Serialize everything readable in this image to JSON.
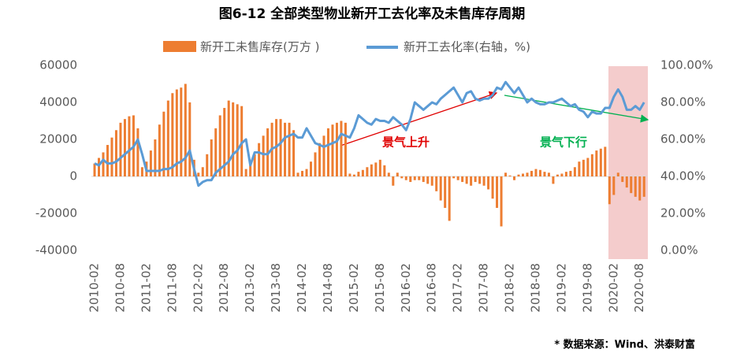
{
  "chart_data": {
    "type": "bar_line",
    "title": "图6-12 全部类型物业新开工去化率及未售库存周期",
    "categories": [
      "2010-02",
      null,
      null,
      null,
      null,
      null,
      "2010-08",
      null,
      null,
      null,
      null,
      null,
      "2011-02",
      null,
      null,
      null,
      null,
      null,
      "2011-08",
      null,
      null,
      null,
      null,
      null,
      "2012-02",
      null,
      null,
      null,
      null,
      null,
      "2012-08",
      null,
      null,
      null,
      null,
      null,
      "2013-02",
      null,
      null,
      null,
      null,
      null,
      "2013-08",
      null,
      null,
      null,
      null,
      null,
      "2014-02",
      null,
      null,
      null,
      null,
      null,
      "2014-08",
      null,
      null,
      null,
      null,
      null,
      "2015-02",
      null,
      null,
      null,
      null,
      null,
      "2015-08",
      null,
      null,
      null,
      null,
      null,
      "2016-02",
      null,
      null,
      null,
      null,
      null,
      "2016-08",
      null,
      null,
      null,
      null,
      null,
      "2017-02",
      null,
      null,
      null,
      null,
      null,
      "2017-08",
      null,
      null,
      null,
      null,
      null,
      "2018-02",
      null,
      null,
      null,
      null,
      null,
      "2018-08",
      null,
      null,
      null,
      null,
      null,
      "2019-02",
      null,
      null,
      null,
      null,
      null,
      "2019-08",
      null,
      null,
      null,
      null,
      null,
      "2020-02",
      null,
      null,
      null,
      null,
      null,
      "2020-08",
      null
    ],
    "series": [
      {
        "name": "新开工未售库存(万方 )",
        "color": "#ED7D31",
        "kind": "bar",
        "values": [
          7000,
          10000,
          13000,
          17000,
          21000,
          25000,
          29000,
          31000,
          32500,
          33000,
          26000,
          5000,
          8000,
          14000,
          20000,
          28000,
          35000,
          41000,
          45000,
          47000,
          48000,
          50000,
          40000,
          9000,
          2000,
          5000,
          12000,
          20000,
          26000,
          33000,
          37000,
          41000,
          40000,
          39000,
          38000,
          4000,
          8000,
          12000,
          18000,
          22000,
          26000,
          29000,
          31000,
          31000,
          29000,
          29000,
          25000,
          2000,
          3000,
          4000,
          8000,
          13000,
          18000,
          22000,
          26000,
          28000,
          29000,
          30000,
          29000,
          1500,
          1000,
          2500,
          3500,
          5000,
          6500,
          7500,
          9000,
          6000,
          2000,
          -5000,
          2000,
          -1000,
          -2000,
          -3000,
          -2000,
          -2000,
          -3000,
          -4000,
          -5000,
          -8000,
          -13000,
          -17000,
          -24000,
          -1000,
          -2000,
          -3000,
          -4000,
          -5000,
          -3000,
          -4000,
          -5000,
          -7000,
          -12000,
          -17000,
          -27000,
          2000,
          500,
          -2000,
          1000,
          1500,
          2000,
          3000,
          4000,
          3500,
          2500,
          2000,
          -4000,
          1000,
          1500,
          2500,
          3000,
          5000,
          8000,
          9000,
          10000,
          12000,
          14000,
          15000,
          16000,
          -15000,
          -10000,
          2000,
          -3000,
          -6000,
          -9000,
          -11000,
          -13000,
          -11000
        ]
      },
      {
        "name": "新开工去化率(右轴，%)",
        "color": "#5B9BD5",
        "kind": "line",
        "axis": "y2",
        "values": [
          47,
          46,
          49,
          47,
          47,
          48,
          50,
          52,
          54,
          56,
          60,
          52,
          43,
          43,
          43,
          43,
          44,
          44,
          45,
          47,
          48,
          50,
          54,
          44,
          35,
          37,
          38,
          38,
          42,
          44,
          46,
          48,
          52,
          54,
          58,
          60,
          46,
          53,
          53,
          52,
          52,
          55,
          56,
          58,
          61,
          62,
          63,
          61,
          61,
          66,
          62,
          58,
          57,
          56,
          57,
          58,
          59,
          63,
          62,
          61,
          66,
          73,
          71,
          69,
          68,
          71,
          70,
          70,
          69,
          72,
          70,
          68,
          65,
          71,
          80,
          78,
          76,
          78,
          80,
          79,
          82,
          84,
          86,
          88,
          84,
          80,
          85,
          86,
          82,
          81,
          82,
          82,
          84,
          88,
          87,
          91,
          88,
          85,
          88,
          84,
          80,
          82,
          80,
          79,
          79,
          80,
          80,
          81,
          82,
          80,
          78,
          79,
          76,
          75,
          72,
          75,
          74,
          74,
          77,
          77,
          83,
          87,
          83,
          76,
          76,
          78,
          76,
          80
        ]
      }
    ],
    "ylim": [
      -40000,
      60000
    ],
    "yticks": [
      -40000,
      -20000,
      0,
      20000,
      40000,
      60000
    ],
    "y2lim": [
      0,
      100
    ],
    "y2ticks": [
      {
        "value": 0,
        "label": "0.00%"
      },
      {
        "value": 20,
        "label": "20.00%"
      },
      {
        "value": 40,
        "label": "40.00%"
      },
      {
        "value": 60,
        "label": "60.00%"
      },
      {
        "value": 80,
        "label": "80.00%"
      },
      {
        "value": 100,
        "label": "100.00%"
      }
    ],
    "annotations": [
      "景气上升",
      "景气下行"
    ],
    "source": "* 数据来源：Wind、洪泰财富"
  }
}
